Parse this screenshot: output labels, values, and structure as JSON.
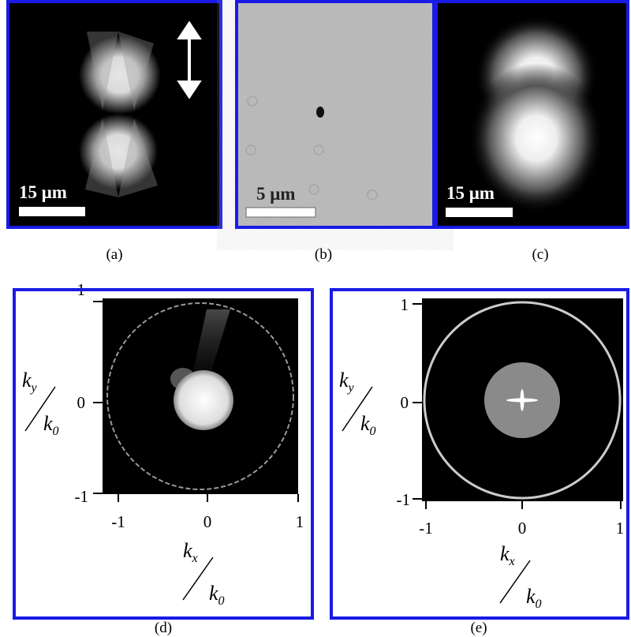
{
  "panels": [
    {
      "label": "(a)",
      "scale_bar": "15 μm"
    },
    {
      "label": "(b)",
      "scale_bar": "5 μm"
    },
    {
      "label": "(c)",
      "scale_bar": "15 μm"
    },
    {
      "label": "(d)",
      "x_ticks": [
        "-1",
        "0",
        "1"
      ],
      "y_ticks": [
        "1",
        "0",
        "-1"
      ],
      "x_axis": {
        "num": "k",
        "num_sub": "x",
        "den": "k",
        "den_sub": "0"
      },
      "y_axis": {
        "num": "k",
        "num_sub": "y",
        "den": "k",
        "den_sub": "0"
      }
    },
    {
      "label": "(e)",
      "x_ticks": [
        "-1",
        "0",
        "1"
      ],
      "y_ticks": [
        "1",
        "0",
        "-1"
      ],
      "x_axis": {
        "num": "k",
        "num_sub": "x",
        "den": "k",
        "den_sub": "0"
      },
      "y_axis": {
        "num": "k",
        "num_sub": "y",
        "den": "k",
        "den_sub": "0"
      }
    }
  ]
}
